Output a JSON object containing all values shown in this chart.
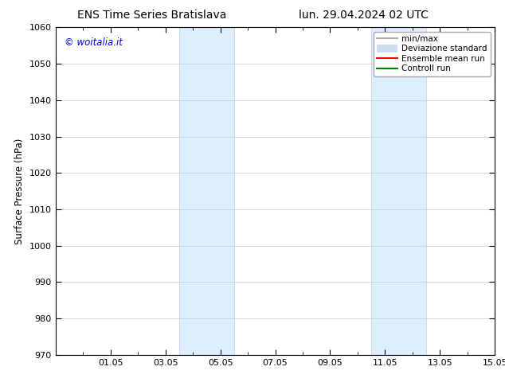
{
  "title_left": "ENS Time Series Bratislava",
  "title_right": "lun. 29.04.2024 02 UTC",
  "ylabel": "Surface Pressure (hPa)",
  "ylim": [
    970,
    1060
  ],
  "yticks": [
    970,
    980,
    990,
    1000,
    1010,
    1020,
    1030,
    1040,
    1050,
    1060
  ],
  "xlim": [
    0,
    16
  ],
  "xtick_positions": [
    2,
    4,
    6,
    8,
    10,
    12,
    14,
    16
  ],
  "xtick_labels": [
    "01.05",
    "03.05",
    "05.05",
    "07.05",
    "09.05",
    "11.05",
    "13.05",
    "15.05"
  ],
  "shaded_regions": [
    {
      "xmin": 4.5,
      "xmax": 6.5
    },
    {
      "xmin": 11.5,
      "xmax": 13.5
    }
  ],
  "shaded_color": "#ddeeff",
  "shaded_edge_color": "#bbccdd",
  "watermark_text": "© woitalia.it",
  "watermark_color": "#0000cc",
  "legend_entries": [
    {
      "label": "min/max",
      "color": "#999999",
      "lw": 1.2
    },
    {
      "label": "Deviazione standard",
      "color": "#ccddee",
      "lw": 7
    },
    {
      "label": "Ensemble mean run",
      "color": "red",
      "lw": 1.5
    },
    {
      "label": "Controll run",
      "color": "green",
      "lw": 1.5
    }
  ],
  "bg_color": "#ffffff",
  "grid_color": "#cccccc",
  "title_fontsize": 10,
  "label_fontsize": 8.5,
  "tick_fontsize": 8,
  "legend_fontsize": 7.5
}
